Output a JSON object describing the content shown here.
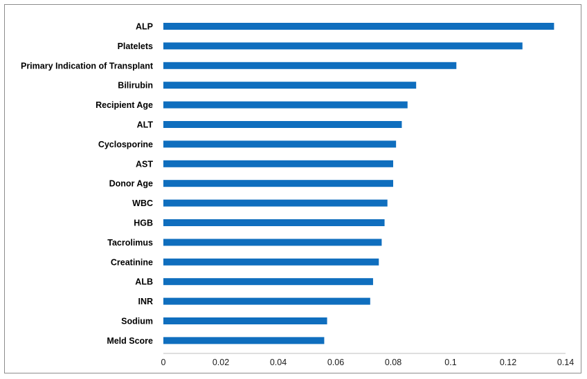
{
  "chart_data": {
    "type": "bar",
    "orientation": "horizontal",
    "title": "",
    "xlabel": "",
    "ylabel": "",
    "bar_color": "#0f6ebe",
    "grid": false,
    "legend": "none",
    "xlim": [
      0,
      0.14
    ],
    "x_ticks": [
      "0",
      "0.02",
      "0.04",
      "0.06",
      "0.08",
      "0.1",
      "0.12",
      "0.14"
    ],
    "x_tick_values": [
      0,
      0.02,
      0.04,
      0.06,
      0.08,
      0.1,
      0.12,
      0.14
    ],
    "categories": [
      "ALP",
      "Platelets",
      "Primary Indication of Transplant",
      "Bilirubin",
      "Recipient Age",
      "ALT",
      "Cyclosporine",
      "AST",
      "Donor Age",
      "WBC",
      "HGB",
      "Tacrolimus",
      "Creatinine",
      "ALB",
      "INR",
      "Sodium",
      "Meld Score"
    ],
    "values": [
      0.136,
      0.125,
      0.102,
      0.088,
      0.085,
      0.083,
      0.081,
      0.08,
      0.08,
      0.078,
      0.077,
      0.076,
      0.075,
      0.073,
      0.072,
      0.057,
      0.056
    ]
  }
}
